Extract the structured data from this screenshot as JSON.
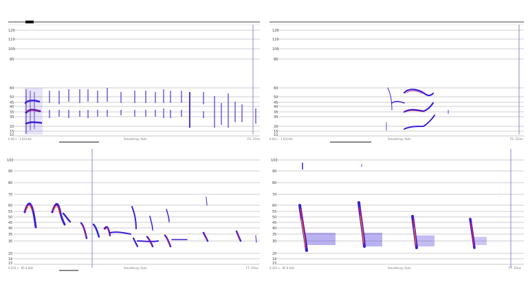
{
  "panels": [
    {
      "id": "panel-1",
      "y_ticks": [
        "10",
        "15",
        "20",
        "30",
        "35",
        "40",
        "45",
        "50",
        "60",
        "80",
        "100",
        "110",
        "120"
      ],
      "footer_left": "0.00 s · 1.04 kHz",
      "footer_center": "Smoothing: Auto",
      "footer_right": "FS: 15ms",
      "has_waveform": true,
      "has_playhead": true
    },
    {
      "id": "panel-2",
      "y_ticks": [
        "10",
        "15",
        "20",
        "30",
        "35",
        "40",
        "45",
        "50",
        "60",
        "80",
        "100",
        "110",
        "120"
      ],
      "footer_left": "0.00 s · 1.04 kHz",
      "footer_center": "Smoothing: Auto",
      "footer_right": "FS: 15ms",
      "has_waveform": true,
      "has_playhead": true
    },
    {
      "id": "panel-3",
      "y_ticks": [
        "15",
        "18",
        "20",
        "30",
        "35",
        "40",
        "45",
        "50",
        "55",
        "60",
        "70",
        "80",
        "90",
        "100"
      ],
      "footer_left": "0.353 s · 95.4 kHz",
      "footer_center": "Smoothing: Auto",
      "footer_right": "FT: 15ms",
      "has_waveform": false,
      "has_playhead": true
    },
    {
      "id": "panel-4",
      "y_ticks": [
        "15",
        "18",
        "20",
        "30",
        "35",
        "40",
        "45",
        "50",
        "55",
        "60",
        "70",
        "80",
        "90",
        "100"
      ],
      "footer_left": "0.261 s · 95.4 kHz",
      "footer_center": "Smoothing: Auto",
      "footer_right": "FT: 15ms",
      "has_waveform": false,
      "has_playhead": true
    }
  ],
  "colors": {
    "call_low": "#3a1fd6",
    "call_mid": "#c21d6b",
    "call_high": "#f2a41f",
    "grid": "#9a9a9a",
    "playhead": "#6c6cc8"
  }
}
